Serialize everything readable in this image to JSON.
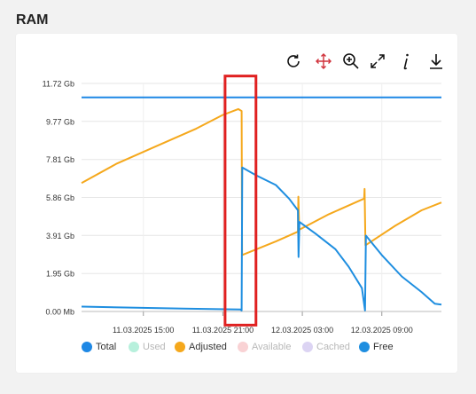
{
  "page": {
    "title": "RAM"
  },
  "toolbar": {
    "items": [
      {
        "name": "reset-zoom",
        "icon": "refresh-icon"
      },
      {
        "name": "pan",
        "icon": "move-arrows-icon"
      },
      {
        "name": "zoom",
        "icon": "zoom-in-icon"
      },
      {
        "name": "fullscreen",
        "icon": "expand-icon"
      },
      {
        "name": "info",
        "icon": "info-icon"
      },
      {
        "name": "download",
        "icon": "download-icon"
      }
    ]
  },
  "colors": {
    "total": "#1e88e5",
    "used": "#b7f0dc",
    "adjusted": "#f5a81c",
    "available": "#f9d2d4",
    "cached": "#dcd4f3",
    "free": "#1e8ee0",
    "highlight": "#e02020"
  },
  "chart_data": {
    "type": "line",
    "xlabel": "",
    "ylabel": "",
    "x_range": [
      "2025-03-11 10:20",
      "2025-03-12 13:30"
    ],
    "y_range_gb": [
      0,
      11.72
    ],
    "y_ticks": [
      {
        "label": "11.72 Gb",
        "value": 11.72
      },
      {
        "label": "9.77 Gb",
        "value": 9.77
      },
      {
        "label": "7.81 Gb",
        "value": 7.81
      },
      {
        "label": "5.86 Gb",
        "value": 5.86
      },
      {
        "label": "3.91 Gb",
        "value": 3.91
      },
      {
        "label": "1.95 Gb",
        "value": 1.95
      },
      {
        "label": "0.00 Mb",
        "value": 0
      }
    ],
    "x_ticks": [
      {
        "label": "11.03.2025 15:00",
        "time": "2025-03-11 15:00"
      },
      {
        "label": "11.03.2025 21:00",
        "time": "2025-03-11 21:00"
      },
      {
        "label": "12.03.2025 03:00",
        "time": "2025-03-12 03:00"
      },
      {
        "label": "12.03.2025 09:00",
        "time": "2025-03-12 09:00"
      }
    ],
    "grid": true,
    "legend_position": "bottom",
    "series": [
      {
        "name": "Total",
        "visible": true,
        "points": [
          [
            "2025-03-11 10:20",
            11.0
          ],
          [
            "2025-03-12 13:30",
            11.0
          ]
        ]
      },
      {
        "name": "Used",
        "visible": false,
        "points": []
      },
      {
        "name": "Adjusted",
        "visible": true,
        "points": [
          [
            "2025-03-11 10:20",
            6.6
          ],
          [
            "2025-03-11 13:00",
            7.6
          ],
          [
            "2025-03-11 16:00",
            8.5
          ],
          [
            "2025-03-11 19:00",
            9.4
          ],
          [
            "2025-03-11 21:00",
            10.1
          ],
          [
            "2025-03-11 22:10",
            10.4
          ],
          [
            "2025-03-11 22:25",
            10.3
          ],
          [
            "2025-03-11 22:27",
            2.9
          ],
          [
            "2025-03-12 01:00",
            3.6
          ],
          [
            "2025-03-12 02:40",
            4.1
          ],
          [
            "2025-03-12 02:42",
            5.9
          ],
          [
            "2025-03-12 02:46",
            4.2
          ],
          [
            "2025-03-12 05:00",
            5.0
          ],
          [
            "2025-03-12 07:00",
            5.6
          ],
          [
            "2025-03-12 07:40",
            5.8
          ],
          [
            "2025-03-12 07:42",
            6.3
          ],
          [
            "2025-03-12 07:46",
            3.4
          ],
          [
            "2025-03-12 10:00",
            4.4
          ],
          [
            "2025-03-12 12:00",
            5.2
          ],
          [
            "2025-03-12 13:30",
            5.6
          ]
        ]
      },
      {
        "name": "Available",
        "visible": false,
        "points": []
      },
      {
        "name": "Cached",
        "visible": false,
        "points": []
      },
      {
        "name": "Free",
        "visible": true,
        "points": [
          [
            "2025-03-11 10:20",
            0.25
          ],
          [
            "2025-03-11 14:00",
            0.2
          ],
          [
            "2025-03-11 18:00",
            0.15
          ],
          [
            "2025-03-11 22:20",
            0.1
          ],
          [
            "2025-03-11 22:25",
            0.05
          ],
          [
            "2025-03-11 22:28",
            7.4
          ],
          [
            "2025-03-11 23:30",
            7.0
          ],
          [
            "2025-03-12 01:00",
            6.5
          ],
          [
            "2025-03-12 02:00",
            5.8
          ],
          [
            "2025-03-12 02:40",
            5.2
          ],
          [
            "2025-03-12 02:43",
            2.8
          ],
          [
            "2025-03-12 02:47",
            4.6
          ],
          [
            "2025-03-12 04:00",
            4.0
          ],
          [
            "2025-03-12 05:30",
            3.2
          ],
          [
            "2025-03-12 06:30",
            2.3
          ],
          [
            "2025-03-12 07:30",
            1.2
          ],
          [
            "2025-03-12 07:44",
            0.05
          ],
          [
            "2025-03-12 07:48",
            3.9
          ],
          [
            "2025-03-12 09:00",
            2.9
          ],
          [
            "2025-03-12 10:30",
            1.8
          ],
          [
            "2025-03-12 12:00",
            1.0
          ],
          [
            "2025-03-12 13:00",
            0.4
          ],
          [
            "2025-03-12 13:30",
            0.35
          ]
        ]
      }
    ],
    "annotation": {
      "type": "rectangle",
      "x_from": "2025-03-11 21:10",
      "x_to": "2025-03-11 23:30",
      "y_from": 12.1,
      "y_to": -0.7
    }
  }
}
